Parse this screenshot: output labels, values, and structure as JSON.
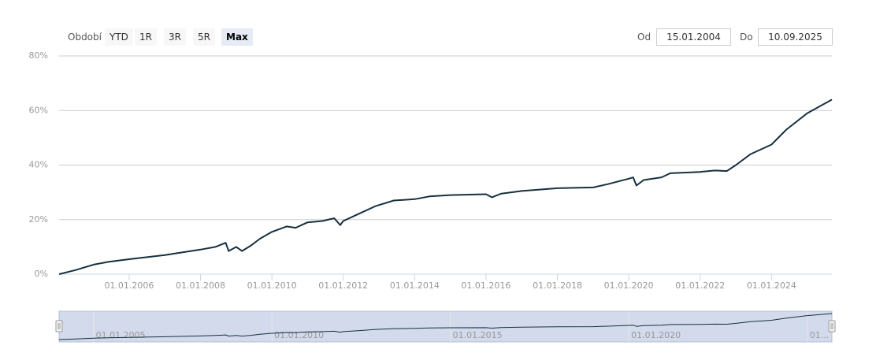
{
  "chart_data": {
    "type": "line",
    "range_selector": {
      "label": "Období",
      "buttons": [
        "YTD",
        "1R",
        "3R",
        "5R",
        "Max"
      ],
      "selected": 4,
      "from_label": "Od",
      "from": "15.01.2004",
      "to_label": "Do",
      "to": "10.09.2025"
    },
    "x": [
      "2004-01-15",
      "2004-07-01",
      "2005-01-01",
      "2005-06-01",
      "2006-01-01",
      "2007-01-01",
      "2008-01-01",
      "2008-06-01",
      "2008-09-15",
      "2008-10-15",
      "2009-01-01",
      "2009-03-01",
      "2009-06-01",
      "2009-09-01",
      "2010-01-01",
      "2010-06-01",
      "2010-09-01",
      "2011-01-01",
      "2011-06-01",
      "2011-10-01",
      "2011-12-01",
      "2012-01-01",
      "2012-06-01",
      "2012-12-01",
      "2013-06-01",
      "2014-01-01",
      "2014-06-01",
      "2015-01-01",
      "2016-01-01",
      "2016-03-01",
      "2016-06-01",
      "2017-01-01",
      "2018-01-01",
      "2019-01-01",
      "2019-06-01",
      "2020-01-01",
      "2020-02-15",
      "2020-03-20",
      "2020-06-01",
      "2020-12-01",
      "2021-03-01",
      "2022-01-01",
      "2022-06-01",
      "2022-10-01",
      "2023-01-01",
      "2023-06-01",
      "2024-01-01",
      "2024-06-01",
      "2025-01-01",
      "2025-09-10"
    ],
    "series": [
      {
        "color": "#17303f",
        "values": [
          0,
          1.5,
          3.5,
          4.5,
          5.5,
          7,
          9,
          10,
          11.5,
          8.5,
          10,
          8.5,
          10.5,
          13,
          15.5,
          17.5,
          17,
          19,
          19.5,
          20.5,
          18,
          19.5,
          22,
          25,
          27,
          27.5,
          28.5,
          29,
          29.3,
          28.2,
          29.5,
          30.5,
          31.5,
          31.8,
          33,
          35,
          35.5,
          32.5,
          34.5,
          35.5,
          37,
          37.5,
          38,
          37.8,
          40,
          44,
          47.5,
          53,
          59,
          64
        ]
      }
    ],
    "xlim": [
      "2004-01-15",
      "2025-09-10"
    ],
    "xticks": [
      {
        "value": "2006-01-01",
        "label": "01.01.2006"
      },
      {
        "value": "2008-01-01",
        "label": "01.01.2008"
      },
      {
        "value": "2010-01-01",
        "label": "01.01.2010"
      },
      {
        "value": "2012-01-01",
        "label": "01.01.2012"
      },
      {
        "value": "2014-01-01",
        "label": "01.01.2014"
      },
      {
        "value": "2016-01-01",
        "label": "01.01.2016"
      },
      {
        "value": "2018-01-01",
        "label": "01.01.2018"
      },
      {
        "value": "2020-01-01",
        "label": "01.01.2020"
      },
      {
        "value": "2022-01-01",
        "label": "01.01.2022"
      },
      {
        "value": "2024-01-01",
        "label": "01.01.2024"
      }
    ],
    "ylim": [
      0,
      80
    ],
    "yticks": [
      {
        "value": 0,
        "label": "0%"
      },
      {
        "value": 20,
        "label": "20%"
      },
      {
        "value": 40,
        "label": "40%"
      },
      {
        "value": 60,
        "label": "60%"
      },
      {
        "value": 80,
        "label": "80%"
      }
    ],
    "grid": true,
    "navigator_xticks": [
      {
        "value": "2005-01-01",
        "label": "01.01.2005"
      },
      {
        "value": "2010-01-01",
        "label": "01.01.2010"
      },
      {
        "value": "2015-01-01",
        "label": "01.01.2015"
      },
      {
        "value": "2020-01-01",
        "label": "01.01.2020"
      },
      {
        "value": "2025-01-01",
        "label": "01..."
      }
    ]
  }
}
